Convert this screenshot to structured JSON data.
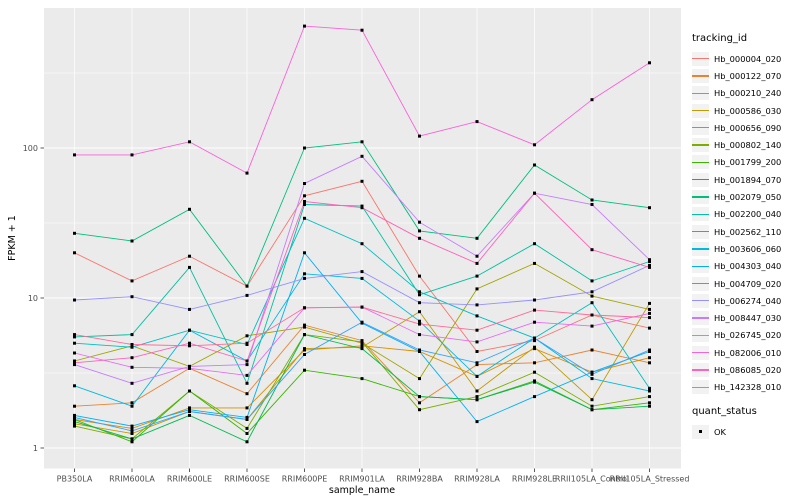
{
  "chart_data": {
    "type": "line",
    "title": "",
    "xlabel": "sample_name",
    "ylabel": "FPKM + 1",
    "y_scale": "log10",
    "y_ticks": [
      1,
      10,
      100
    ],
    "ylim": [
      0.9,
      700
    ],
    "grid": true,
    "legend_position": "right",
    "legend_titles": {
      "series": "tracking_id",
      "points": "quant_status"
    },
    "point_status_label": "OK",
    "point_color": "#000000",
    "categories": [
      "PB350LA",
      "RRIM600LA",
      "RRIM600LE",
      "RRIM600SE",
      "RRIM600PE",
      "RRIM901LA",
      "RRIM928BA",
      "RRIM928LA",
      "RRIM928LE",
      "RRII105LA_Control",
      "RRII105LA_Stressed"
    ],
    "series": [
      {
        "name": "Hb_000004_020",
        "color": "#F8766D",
        "values": [
          20,
          13,
          19,
          12,
          48,
          60,
          14,
          4.4,
          5.2,
          7.7,
          6.3
        ]
      },
      {
        "name": "Hb_000122_070",
        "color": "#EA8331",
        "values": [
          1.9,
          2.0,
          3.4,
          2.3,
          6.6,
          5.2,
          2.0,
          3.6,
          3.7,
          4.5,
          3.7
        ]
      },
      {
        "name": "Hb_000210_240",
        "color": "#D89000",
        "values": [
          1.55,
          1.35,
          1.85,
          1.85,
          4.5,
          4.8,
          4.4,
          3.0,
          4.6,
          3.2,
          4.0
        ]
      },
      {
        "name": "Hb_000586_030",
        "color": "#C09B00",
        "values": [
          1.45,
          1.25,
          1.75,
          1.55,
          4.6,
          4.7,
          8.1,
          2.4,
          4.7,
          2.1,
          9.2
        ]
      },
      {
        "name": "Hb_000656_090",
        "color": "#A3A500",
        "values": [
          3.8,
          4.8,
          3.5,
          5.6,
          6.4,
          5.0,
          2.9,
          11.5,
          17,
          10.3,
          8.4
        ]
      },
      {
        "name": "Hb_000802_140",
        "color": "#7CAE00",
        "values": [
          1.4,
          1.15,
          2.4,
          1.35,
          5.7,
          5.1,
          1.8,
          2.2,
          3.2,
          1.9,
          2.2
        ]
      },
      {
        "name": "Hb_001799_200",
        "color": "#39B600",
        "values": [
          1.55,
          1.1,
          2.4,
          1.25,
          3.3,
          2.9,
          2.2,
          2.1,
          2.8,
          1.8,
          2.0
        ]
      },
      {
        "name": "Hb_001894_070",
        "color": "#00BB4E",
        "values": [
          1.5,
          1.15,
          1.65,
          1.1,
          5.7,
          4.6,
          2.2,
          2.1,
          2.75,
          1.8,
          1.9
        ]
      },
      {
        "name": "Hb_002079_050",
        "color": "#00BF7D",
        "values": [
          27,
          24,
          39,
          12,
          100,
          110,
          28,
          25,
          77,
          45,
          40
        ]
      },
      {
        "name": "Hb_002200_040",
        "color": "#00C1A3",
        "values": [
          5.5,
          5.7,
          16,
          2.7,
          42,
          41,
          10.5,
          14,
          23,
          13,
          17.5
        ]
      },
      {
        "name": "Hb_002562_110",
        "color": "#00BFC4",
        "values": [
          5.0,
          4.7,
          6.1,
          4.9,
          34,
          23,
          11,
          7.6,
          5.4,
          9.3,
          2.5
        ]
      },
      {
        "name": "Hb_003606_060",
        "color": "#00BAE0",
        "values": [
          2.6,
          1.9,
          6.1,
          3.8,
          14.5,
          13.5,
          7.0,
          3.0,
          5.4,
          2.9,
          2.4
        ]
      },
      {
        "name": "Hb_004303_040",
        "color": "#00B0F6",
        "values": [
          1.65,
          1.4,
          1.8,
          1.6,
          20,
          6.8,
          4.4,
          1.5,
          2.2,
          3.2,
          4.4
        ]
      },
      {
        "name": "Hb_004709_020",
        "color": "#35A2FF",
        "values": [
          1.6,
          1.3,
          1.75,
          1.55,
          4.2,
          6.9,
          4.5,
          3.7,
          5.4,
          3.1,
          4.5
        ]
      },
      {
        "name": "Hb_006274_040",
        "color": "#9590FF",
        "values": [
          9.7,
          10.2,
          8.4,
          10.4,
          13.5,
          15,
          9.3,
          9.0,
          9.7,
          11,
          16.5
        ]
      },
      {
        "name": "Hb_008447_030",
        "color": "#C77CFF",
        "values": [
          3.6,
          2.7,
          3.5,
          3.6,
          58,
          88,
          32,
          19,
          50,
          42,
          18
        ]
      },
      {
        "name": "Hb_026745_020",
        "color": "#E76BF3",
        "values": [
          4.3,
          3.45,
          3.4,
          3.05,
          8.6,
          8.7,
          5.7,
          5.1,
          6.9,
          6.5,
          7.9
        ]
      },
      {
        "name": "Hb_082006_010",
        "color": "#FA62DB",
        "values": [
          90,
          90,
          110,
          68,
          650,
          610,
          120,
          150,
          105,
          210,
          370
        ]
      },
      {
        "name": "Hb_086085_020",
        "color": "#FF62BC",
        "values": [
          3.7,
          4.0,
          5.0,
          3.8,
          44,
          40,
          25,
          17,
          50,
          21,
          16
        ]
      },
      {
        "name": "Hb_142328_010",
        "color": "#FF6A98",
        "values": [
          5.7,
          4.9,
          4.8,
          5.0,
          8.6,
          8.7,
          6.7,
          6.1,
          8.3,
          7.7,
          7.4
        ]
      }
    ]
  },
  "style": {
    "panel_bg": "#EBEBEB",
    "grid_color": "#FFFFFF",
    "tick_mark_color": "#333333",
    "tick_label_color": "#4D4D4D",
    "legend_key_bg": "#F2F2F2"
  }
}
